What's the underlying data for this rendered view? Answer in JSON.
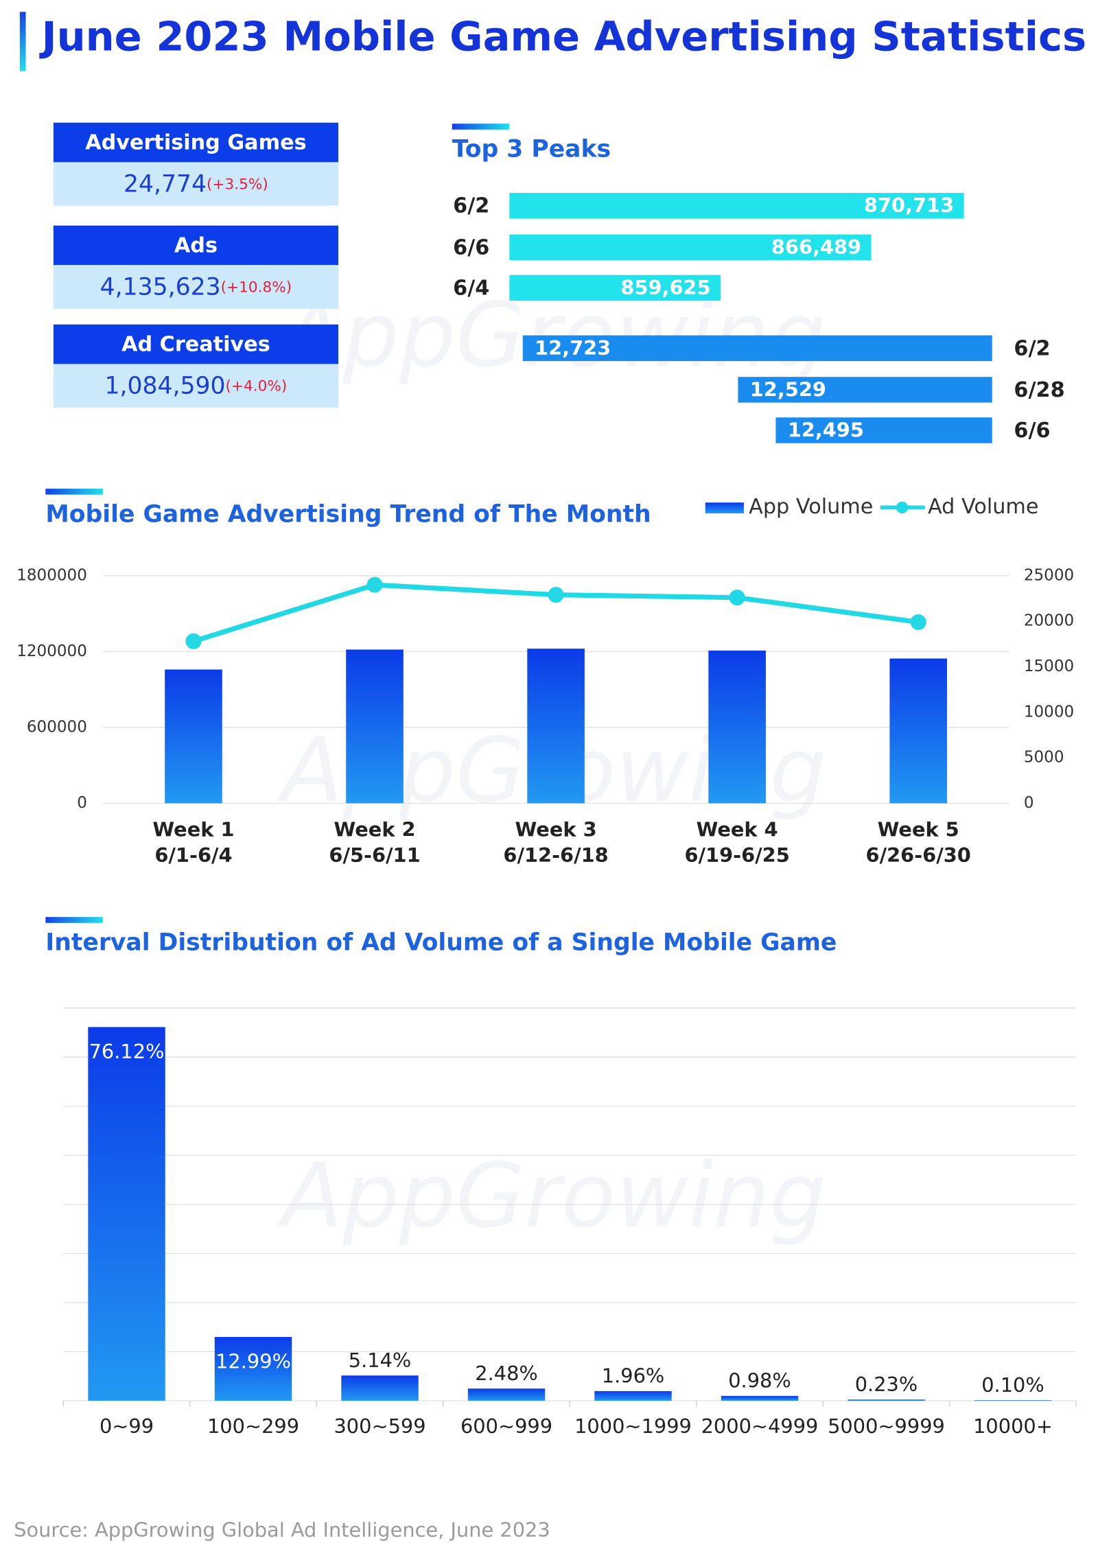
{
  "header": {
    "title": "June 2023 Mobile Game Advertising Statistics"
  },
  "stats": [
    {
      "label": "Advertising Games",
      "value": "24,774",
      "change": "(+3.5%)"
    },
    {
      "label": "Ads",
      "value": "4,135,623",
      "change": "(+10.8%)"
    },
    {
      "label": "Ad Creatives",
      "value": "1,084,590",
      "change": "(+4.0%)"
    }
  ],
  "watermark": "AppGrowing",
  "chart_data": [
    {
      "type": "hbar",
      "title": "Top 3 Peaks",
      "categories": [
        "6/2",
        "6/6",
        "6/4"
      ],
      "values": [
        870713,
        866489,
        859625
      ],
      "value_labels": [
        "870,713",
        "866,489",
        "859,625"
      ],
      "color": "#22e3ec",
      "xlim": [
        850000,
        872000
      ],
      "direction": "left-to-right"
    },
    {
      "type": "hbar",
      "categories": [
        "6/2",
        "6/28",
        "6/6"
      ],
      "values": [
        12723,
        12529,
        12495
      ],
      "value_labels": [
        "12,723",
        "12,529",
        "12,495"
      ],
      "color": "#1a8cf0",
      "xlim": [
        12300,
        12735
      ],
      "direction": "right-to-left"
    },
    {
      "type": "bar-line",
      "title": "Mobile Game Advertising Trend of The Month",
      "categories": [
        [
          "Week 1",
          "6/1-6/4"
        ],
        [
          "Week 2",
          "6/5-6/11"
        ],
        [
          "Week 3",
          "6/12-6/18"
        ],
        [
          "Week 4",
          "6/19-6/25"
        ],
        [
          "Week 5",
          "6/26-6/30"
        ]
      ],
      "series": [
        {
          "name": "App Volume",
          "kind": "bar",
          "color": "#1245ea",
          "values": [
            1058000,
            1216000,
            1223000,
            1208000,
            1145000
          ]
        },
        {
          "name": "Ad Volume",
          "kind": "line",
          "axis": "y2",
          "color": "#22d8e4",
          "values": [
            17800,
            24000,
            22900,
            22600,
            19900
          ]
        }
      ],
      "ylim": [
        0,
        1800000
      ],
      "yticks": [
        0,
        600000,
        1200000,
        1800000
      ],
      "y2lim": [
        0,
        25000
      ],
      "y2ticks": [
        0,
        5000,
        10000,
        15000,
        20000,
        25000
      ],
      "grid": true,
      "legend": "top-right"
    },
    {
      "type": "bar",
      "title": "Interval Distribution of Ad Volume of a Single Mobile Game",
      "categories": [
        "0~99",
        "100~299",
        "300~599",
        "600~999",
        "1000~1999",
        "2000~4999",
        "5000~9999",
        "10000+"
      ],
      "values": [
        76.12,
        12.99,
        5.14,
        2.48,
        1.96,
        0.98,
        0.23,
        0.1
      ],
      "value_labels": [
        "76.12%",
        "12.99%",
        "5.14%",
        "2.48%",
        "1.96%",
        "0.98%",
        "0.23%",
        "0.10%"
      ],
      "color": "#1245ea",
      "ylim": [
        0,
        80
      ],
      "yticks": [
        0,
        10,
        20,
        30,
        40,
        50,
        60,
        70,
        80
      ],
      "grid": true,
      "ytick_labels": false
    }
  ],
  "source": "Source: AppGrowing Global Ad Intelligence, June 2023"
}
